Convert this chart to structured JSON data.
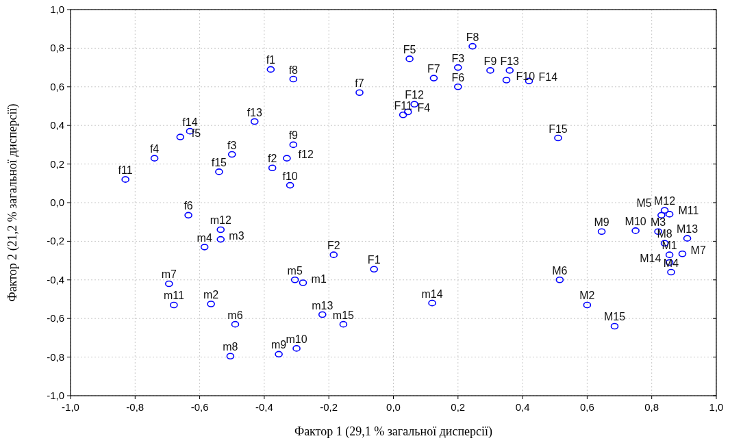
{
  "chart_data": {
    "type": "scatter",
    "xlabel": "Фактор 1 (29,1 % загальної дисперсії)",
    "ylabel": "Фактор 2 (21,2 % загальної дисперсії)",
    "xlim": [
      -1,
      1
    ],
    "ylim": [
      -1,
      1
    ],
    "xticks": [
      {
        "value": -1,
        "label": "-1,0"
      },
      {
        "value": -0.8,
        "label": "-0,8"
      },
      {
        "value": -0.6,
        "label": "-0,6"
      },
      {
        "value": -0.4,
        "label": "-0,4"
      },
      {
        "value": -0.2,
        "label": "-0,2"
      },
      {
        "value": 0,
        "label": "0,0"
      },
      {
        "value": 0.2,
        "label": "0,2"
      },
      {
        "value": 0.4,
        "label": "0,4"
      },
      {
        "value": 0.6,
        "label": "0,6"
      },
      {
        "value": 0.8,
        "label": "0,8"
      },
      {
        "value": 1,
        "label": "1,0"
      }
    ],
    "yticks": [
      {
        "value": -1,
        "label": "-1,0"
      },
      {
        "value": -0.8,
        "label": "-0,8"
      },
      {
        "value": -0.6,
        "label": "-0,6"
      },
      {
        "value": -0.4,
        "label": "-0,4"
      },
      {
        "value": -0.2,
        "label": "-0,2"
      },
      {
        "value": 0,
        "label": "0,0"
      },
      {
        "value": 0.2,
        "label": "0,2"
      },
      {
        "value": 0.4,
        "label": "0,4"
      },
      {
        "value": 0.6,
        "label": "0,6"
      },
      {
        "value": 0.8,
        "label": "0,8"
      },
      {
        "value": 1,
        "label": "1,0"
      }
    ],
    "grid": true,
    "marker": "circle",
    "series": [
      {
        "color": "#0000ff",
        "x": [
          -0.38,
          -0.31,
          -0.43,
          -0.63,
          -0.66,
          -0.74,
          -0.83,
          -0.5,
          -0.54,
          -0.375,
          -0.33,
          -0.31,
          -0.32,
          -0.105,
          0.05,
          0.245,
          0.2,
          0.125,
          0.2,
          0.3,
          0.36,
          0.35,
          0.42,
          0.065,
          0.045,
          0.03,
          0.51,
          -0.185,
          -0.06,
          -0.635,
          -0.535,
          -0.535,
          -0.585,
          -0.695,
          -0.68,
          -0.565,
          -0.49,
          -0.505,
          -0.355,
          -0.3,
          -0.305,
          -0.28,
          -0.22,
          -0.155,
          0.12,
          0.645,
          0.75,
          0.82,
          0.84,
          0.855,
          0.83,
          0.84,
          0.91,
          0.855,
          0.895,
          0.855,
          0.86,
          0.515,
          0.6,
          0.685
        ],
        "values": [
          0.69,
          0.64,
          0.42,
          0.37,
          0.34,
          0.23,
          0.12,
          0.25,
          0.16,
          0.18,
          0.23,
          0.3,
          0.09,
          0.57,
          0.745,
          0.81,
          0.7,
          0.645,
          0.6,
          0.685,
          0.685,
          0.635,
          0.63,
          0.51,
          0.47,
          0.455,
          0.335,
          -0.27,
          -0.345,
          -0.065,
          -0.14,
          -0.19,
          -0.23,
          -0.42,
          -0.53,
          -0.525,
          -0.63,
          -0.795,
          -0.785,
          -0.755,
          -0.4,
          -0.415,
          -0.58,
          -0.63,
          -0.52,
          -0.15,
          -0.145,
          -0.15,
          -0.04,
          -0.06,
          -0.065,
          -0.21,
          -0.185,
          -0.27,
          -0.265,
          -0.31,
          -0.36,
          -0.4,
          -0.53,
          -0.64
        ]
      }
    ],
    "annotations": [
      {
        "text": "f1",
        "x": -0.38,
        "y": 0.69
      },
      {
        "text": "f8",
        "x": -0.31,
        "y": 0.64
      },
      {
        "text": "f13",
        "x": -0.43,
        "y": 0.42
      },
      {
        "text": "f14",
        "x": -0.63,
        "y": 0.37
      },
      {
        "text": "f5",
        "x": -0.66,
        "y": 0.34
      },
      {
        "text": "f4",
        "x": -0.74,
        "y": 0.23
      },
      {
        "text": "f11",
        "x": -0.83,
        "y": 0.12
      },
      {
        "text": "f3",
        "x": -0.5,
        "y": 0.25
      },
      {
        "text": "f15",
        "x": -0.54,
        "y": 0.16
      },
      {
        "text": "f2",
        "x": -0.375,
        "y": 0.18
      },
      {
        "text": "f12",
        "x": -0.33,
        "y": 0.23
      },
      {
        "text": "f9",
        "x": -0.31,
        "y": 0.3
      },
      {
        "text": "f10",
        "x": -0.32,
        "y": 0.09
      },
      {
        "text": "f7",
        "x": -0.105,
        "y": 0.57
      },
      {
        "text": "F5",
        "x": 0.05,
        "y": 0.745
      },
      {
        "text": "F8",
        "x": 0.245,
        "y": 0.81
      },
      {
        "text": "F3",
        "x": 0.2,
        "y": 0.7
      },
      {
        "text": "F7",
        "x": 0.125,
        "y": 0.645
      },
      {
        "text": "F6",
        "x": 0.2,
        "y": 0.6
      },
      {
        "text": "F9",
        "x": 0.3,
        "y": 0.685
      },
      {
        "text": "F13",
        "x": 0.36,
        "y": 0.685
      },
      {
        "text": "F10",
        "x": 0.35,
        "y": 0.635
      },
      {
        "text": "F14",
        "x": 0.42,
        "y": 0.63
      },
      {
        "text": "F12",
        "x": 0.065,
        "y": 0.51
      },
      {
        "text": "F4",
        "x": 0.045,
        "y": 0.47
      },
      {
        "text": "F11",
        "x": 0.03,
        "y": 0.455
      },
      {
        "text": "F15",
        "x": 0.51,
        "y": 0.335
      },
      {
        "text": "F2",
        "x": -0.185,
        "y": -0.27
      },
      {
        "text": "F1",
        "x": -0.06,
        "y": -0.345
      },
      {
        "text": "f6",
        "x": -0.635,
        "y": -0.065
      },
      {
        "text": "m12",
        "x": -0.535,
        "y": -0.14
      },
      {
        "text": "m3",
        "x": -0.535,
        "y": -0.19
      },
      {
        "text": "m4",
        "x": -0.585,
        "y": -0.23
      },
      {
        "text": "m7",
        "x": -0.695,
        "y": -0.42
      },
      {
        "text": "m11",
        "x": -0.68,
        "y": -0.53
      },
      {
        "text": "m2",
        "x": -0.565,
        "y": -0.525
      },
      {
        "text": "m6",
        "x": -0.49,
        "y": -0.63
      },
      {
        "text": "m8",
        "x": -0.505,
        "y": -0.795
      },
      {
        "text": "m9",
        "x": -0.355,
        "y": -0.785
      },
      {
        "text": "m10",
        "x": -0.3,
        "y": -0.755
      },
      {
        "text": "m5",
        "x": -0.305,
        "y": -0.4
      },
      {
        "text": "m1",
        "x": -0.28,
        "y": -0.415
      },
      {
        "text": "m13",
        "x": -0.22,
        "y": -0.58
      },
      {
        "text": "m15",
        "x": -0.155,
        "y": -0.63
      },
      {
        "text": "m14",
        "x": 0.12,
        "y": -0.52
      },
      {
        "text": "M9",
        "x": 0.645,
        "y": -0.15
      },
      {
        "text": "M10",
        "x": 0.75,
        "y": -0.145
      },
      {
        "text": "M3",
        "x": 0.82,
        "y": -0.15
      },
      {
        "text": "M12",
        "x": 0.84,
        "y": -0.04
      },
      {
        "text": "M11",
        "x": 0.855,
        "y": -0.06
      },
      {
        "text": "M5",
        "x": 0.83,
        "y": -0.065
      },
      {
        "text": "M8",
        "x": 0.84,
        "y": -0.21
      },
      {
        "text": "M13",
        "x": 0.91,
        "y": -0.185
      },
      {
        "text": "M1",
        "x": 0.855,
        "y": -0.27
      },
      {
        "text": "M7",
        "x": 0.895,
        "y": -0.265
      },
      {
        "text": "M14",
        "x": 0.855,
        "y": -0.31
      },
      {
        "text": "M4",
        "x": 0.86,
        "y": -0.36
      },
      {
        "text": "M6",
        "x": 0.515,
        "y": -0.4
      },
      {
        "text": "M2",
        "x": 0.6,
        "y": -0.53
      },
      {
        "text": "M15",
        "x": 0.685,
        "y": -0.64
      }
    ]
  }
}
